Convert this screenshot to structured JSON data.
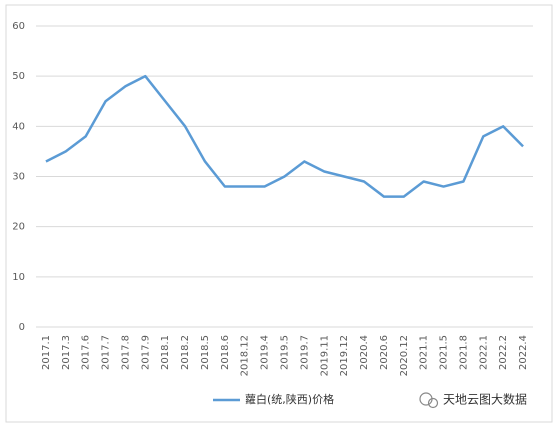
{
  "chart_data": {
    "type": "line",
    "categories": [
      "2017.1",
      "2017.3",
      "2017.6",
      "2017.7",
      "2017.8",
      "2017.9",
      "2018.1",
      "2018.2",
      "2018.5",
      "2018.6",
      "2018.12",
      "2019.4",
      "2019.5",
      "2019.7",
      "2019.11",
      "2019.12",
      "2020.4",
      "2020.6",
      "2020.12",
      "2021.1",
      "2021.5",
      "2021.8",
      "2022.1",
      "2022.2",
      "2022.4"
    ],
    "series": [
      {
        "name": "蘿白(统,陕西)价格",
        "color": "#5b9bd5",
        "values": [
          33,
          35,
          38,
          45,
          48,
          50,
          45,
          40,
          33,
          28,
          28,
          28,
          30,
          33,
          31,
          30,
          29,
          26,
          26,
          29,
          28,
          29,
          38,
          40,
          36
        ]
      }
    ],
    "ylim": [
      0,
      60
    ],
    "yticks": [
      0,
      10,
      20,
      30,
      40,
      50,
      60
    ],
    "grid": true,
    "legend": "bottom",
    "watermark": "天地云图大数据"
  }
}
